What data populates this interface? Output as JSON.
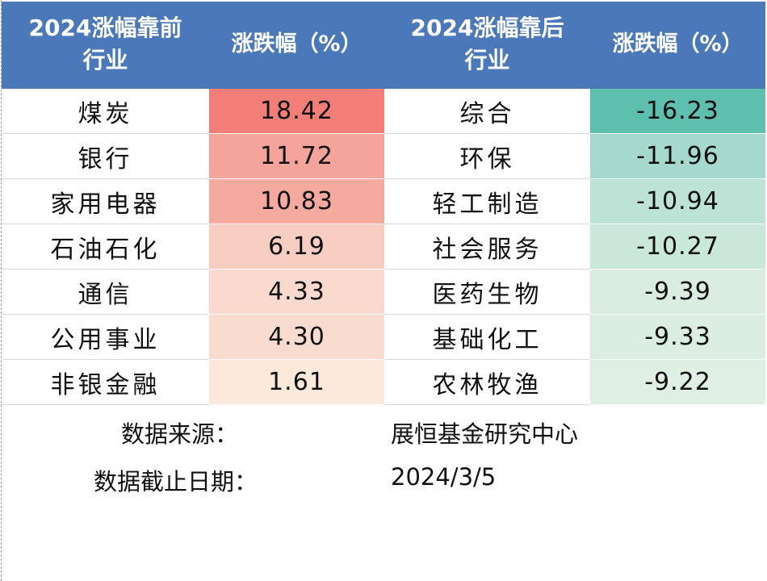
{
  "table": {
    "headers": {
      "top_industry": [
        "2024涨幅靠前",
        "行业"
      ],
      "top_change": "涨跌幅（%）",
      "bottom_industry": [
        "2024涨幅靠后",
        "行业"
      ],
      "bottom_change": "涨跌幅（%）"
    },
    "rows": [
      {
        "top_name": "煤炭",
        "top_value": "18.42",
        "bottom_name": "综合",
        "bottom_value": "-16.23"
      },
      {
        "top_name": "银行",
        "top_value": "11.72",
        "bottom_name": "环保",
        "bottom_value": "-11.96"
      },
      {
        "top_name": "家用电器",
        "top_value": "10.83",
        "bottom_name": "轻工制造",
        "bottom_value": "-10.94"
      },
      {
        "top_name": "石油石化",
        "top_value": "6.19",
        "bottom_name": "社会服务",
        "bottom_value": "-10.27"
      },
      {
        "top_name": "通信",
        "top_value": "4.33",
        "bottom_name": "医药生物",
        "bottom_value": "-9.39"
      },
      {
        "top_name": "公用事业",
        "top_value": "4.30",
        "bottom_name": "基础化工",
        "bottom_value": "-9.33"
      },
      {
        "top_name": "非银金融",
        "top_value": "1.61",
        "bottom_name": "农林牧渔",
        "bottom_value": "-9.22"
      }
    ],
    "top_fill_colors": [
      "#f17f78",
      "#f5a49c",
      "#f5aa9f",
      "#f8cdc2",
      "#fad9cf",
      "#fadbd0",
      "#fce9dc"
    ],
    "bottom_fill_colors": [
      "#5ebfae",
      "#a6d9cd",
      "#bde3d7",
      "#c9e7db",
      "#daede0",
      "#dceee1",
      "#e0efe3"
    ]
  },
  "footer": {
    "source_label": "数据来源：",
    "source_value": "展恒基金研究中心",
    "date_label": "数据截止日期：",
    "date_value": "2024/3/5"
  }
}
